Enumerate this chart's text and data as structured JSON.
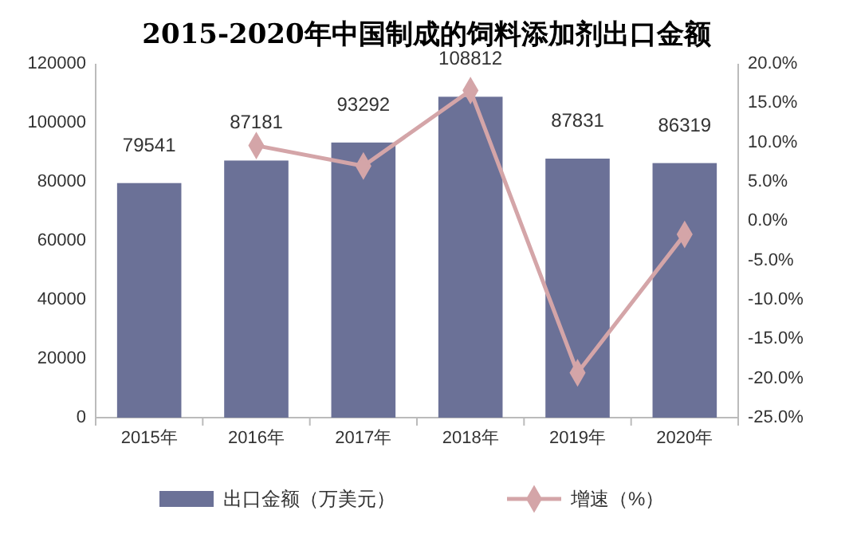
{
  "chart_data": {
    "type": "bar",
    "title": "2015-2020年中国制成的饲料添加剂出口金额",
    "categories": [
      "2015年",
      "2016年",
      "2017年",
      "2018年",
      "2019年",
      "2020年"
    ],
    "series": [
      {
        "name": "出口金额（万美元）",
        "color": "#6b7197",
        "values": [
          79541,
          87181,
          93292,
          108812,
          87831,
          86319
        ],
        "value_labels": [
          "79541",
          "87181",
          "93292",
          "108812",
          "87831",
          "86319"
        ]
      },
      {
        "name": "增速（%）",
        "type": "line",
        "axis": "y2",
        "color": "#d4a5a8",
        "values": [
          null,
          9.6,
          7.0,
          16.6,
          -19.3,
          -1.7
        ]
      }
    ],
    "ylim": [
      0,
      120000
    ],
    "yticks": [
      0,
      20000,
      40000,
      60000,
      80000,
      100000,
      120000
    ],
    "y2lim": [
      -25,
      20
    ],
    "y2ticks": [
      {
        "value": -25,
        "label": "-25.0%"
      },
      {
        "value": -20,
        "label": "-20.0%"
      },
      {
        "value": -15,
        "label": "-15.0%"
      },
      {
        "value": -10,
        "label": "-10.0%"
      },
      {
        "value": -5,
        "label": "-5.0%"
      },
      {
        "value": 0,
        "label": "0.0%"
      },
      {
        "value": 5,
        "label": "5.0%"
      },
      {
        "value": 10,
        "label": "10.0%"
      },
      {
        "value": 15,
        "label": "15.0%"
      },
      {
        "value": 20,
        "label": "20.0%"
      }
    ],
    "marker": "diamond",
    "legend": "bottom",
    "grid": false
  }
}
